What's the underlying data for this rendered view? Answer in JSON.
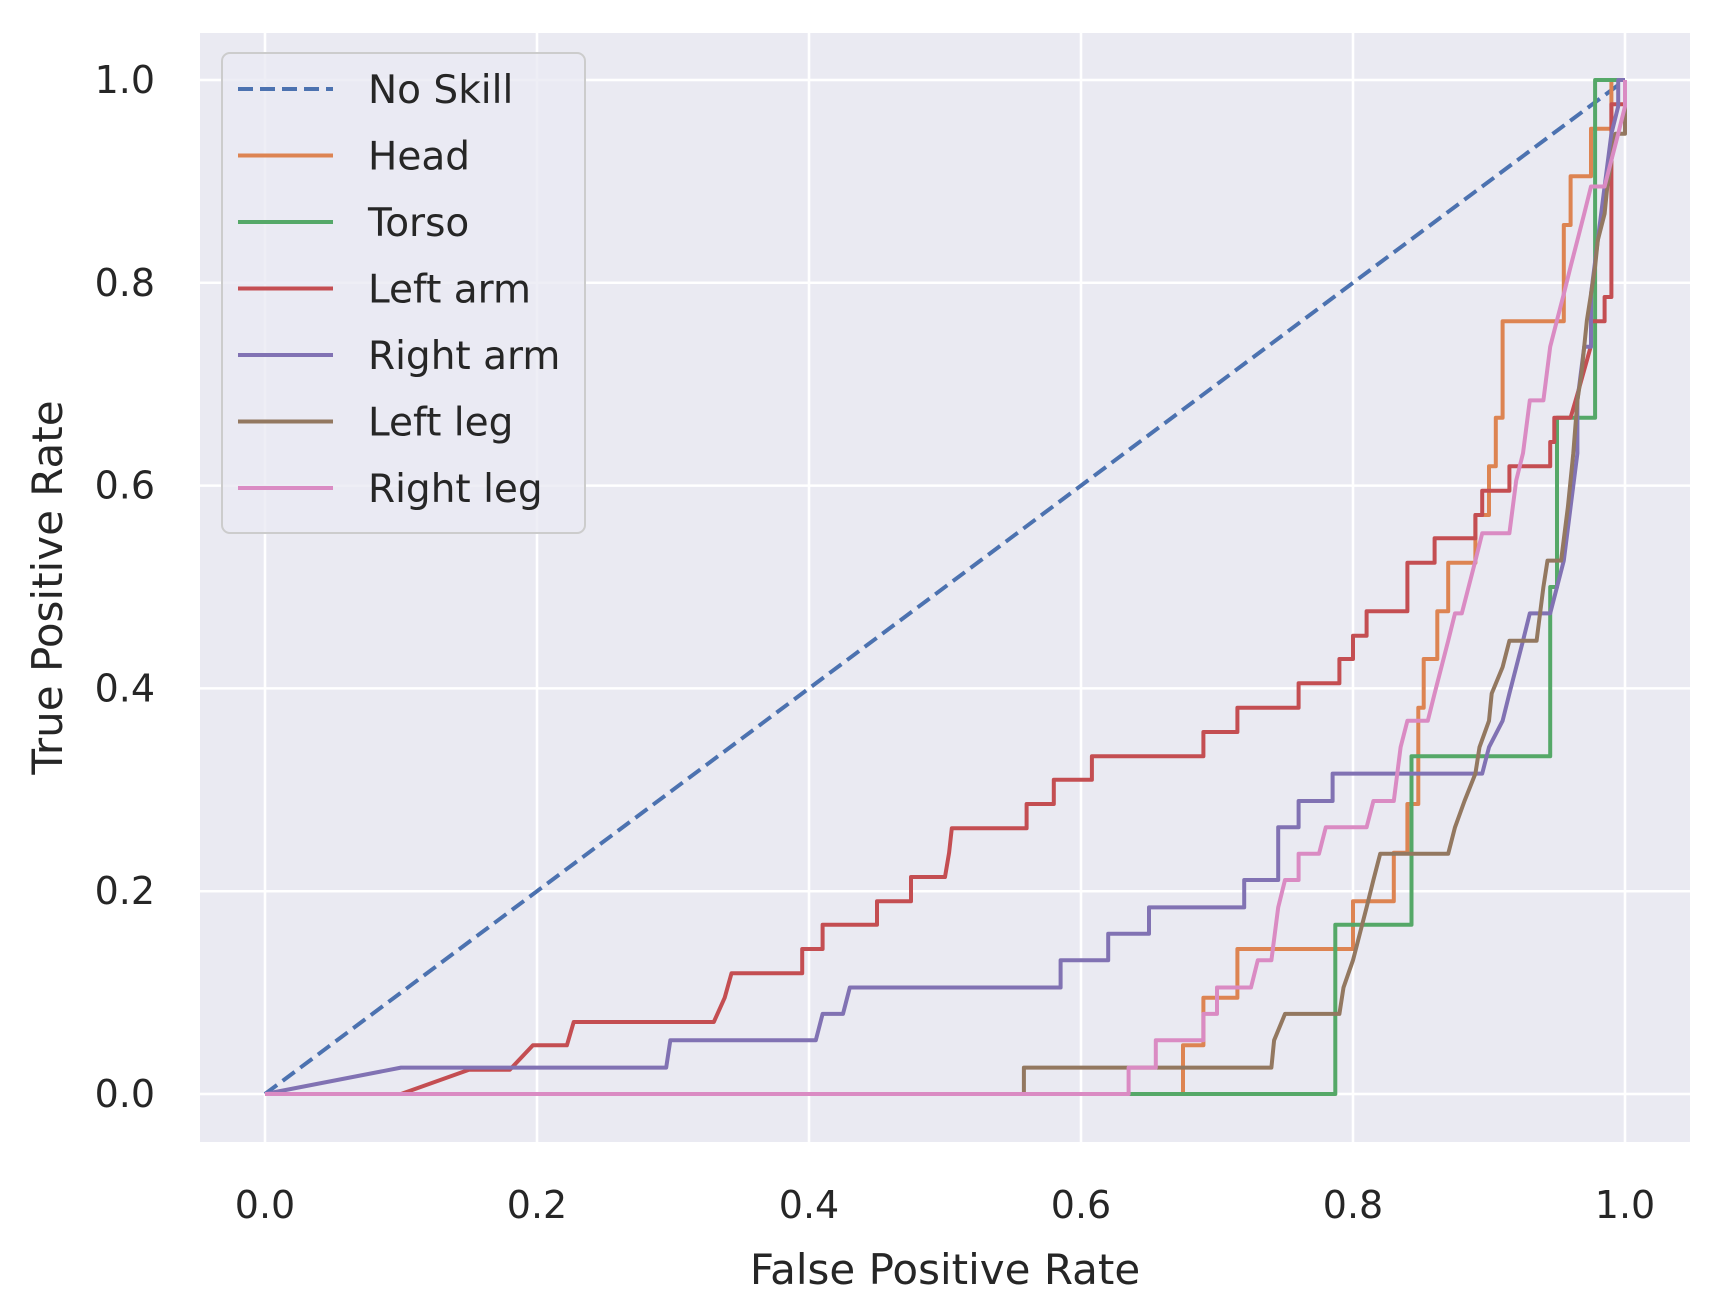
{
  "chart_data": {
    "type": "line",
    "title": "",
    "xlabel": "False Positive Rate",
    "ylabel": "True Positive Rate",
    "xlim": [
      -0.05,
      1.05
    ],
    "ylim": [
      -0.05,
      1.05
    ],
    "xticks": [
      0.0,
      0.2,
      0.4,
      0.6,
      0.8,
      1.0
    ],
    "yticks": [
      0.0,
      0.2,
      0.4,
      0.6,
      0.8,
      1.0
    ],
    "tick_labels": [
      "0.0",
      "0.2",
      "0.4",
      "0.6",
      "0.8",
      "1.0"
    ],
    "grid": true,
    "background": "#eaeaf2",
    "legend_position": "top-left",
    "series": [
      {
        "name": "No Skill",
        "color": "#4c72b0",
        "dashed": true,
        "points": [
          [
            0,
            0
          ],
          [
            1,
            1
          ]
        ]
      },
      {
        "name": "Head",
        "color": "#dd8452",
        "points": [
          [
            0,
            0
          ],
          [
            0.675,
            0
          ],
          [
            0.675,
            0.048
          ],
          [
            0.69,
            0.048
          ],
          [
            0.69,
            0.095
          ],
          [
            0.705,
            0.095
          ],
          [
            0.715,
            0.095
          ],
          [
            0.715,
            0.143
          ],
          [
            0.8,
            0.143
          ],
          [
            0.8,
            0.19
          ],
          [
            0.83,
            0.19
          ],
          [
            0.83,
            0.238
          ],
          [
            0.84,
            0.238
          ],
          [
            0.84,
            0.286
          ],
          [
            0.848,
            0.286
          ],
          [
            0.848,
            0.381
          ],
          [
            0.852,
            0.381
          ],
          [
            0.852,
            0.429
          ],
          [
            0.862,
            0.429
          ],
          [
            0.862,
            0.476
          ],
          [
            0.87,
            0.476
          ],
          [
            0.87,
            0.524
          ],
          [
            0.89,
            0.524
          ],
          [
            0.89,
            0.571
          ],
          [
            0.9,
            0.571
          ],
          [
            0.9,
            0.619
          ],
          [
            0.905,
            0.619
          ],
          [
            0.905,
            0.667
          ],
          [
            0.91,
            0.667
          ],
          [
            0.91,
            0.762
          ],
          [
            0.955,
            0.762
          ],
          [
            0.955,
            0.857
          ],
          [
            0.96,
            0.857
          ],
          [
            0.96,
            0.905
          ],
          [
            0.975,
            0.905
          ],
          [
            0.975,
            0.952
          ],
          [
            0.99,
            0.952
          ],
          [
            0.99,
            1.0
          ],
          [
            1.0,
            1.0
          ]
        ]
      },
      {
        "name": "Torso",
        "color": "#55a868",
        "points": [
          [
            0,
            0
          ],
          [
            0.635,
            0
          ],
          [
            0.787,
            0
          ],
          [
            0.787,
            0.167
          ],
          [
            0.843,
            0.167
          ],
          [
            0.843,
            0.333
          ],
          [
            0.945,
            0.333
          ],
          [
            0.945,
            0.5
          ],
          [
            0.95,
            0.5
          ],
          [
            0.95,
            0.667
          ],
          [
            0.978,
            0.667
          ],
          [
            0.978,
            1.0
          ],
          [
            1.0,
            1.0
          ]
        ]
      },
      {
        "name": "Left arm",
        "color": "#c44e52",
        "points": [
          [
            0,
            0
          ],
          [
            0.1,
            0
          ],
          [
            0.15,
            0.024
          ],
          [
            0.18,
            0.024
          ],
          [
            0.197,
            0.048
          ],
          [
            0.222,
            0.048
          ],
          [
            0.227,
            0.071
          ],
          [
            0.33,
            0.071
          ],
          [
            0.338,
            0.095
          ],
          [
            0.343,
            0.119
          ],
          [
            0.395,
            0.119
          ],
          [
            0.395,
            0.143
          ],
          [
            0.41,
            0.143
          ],
          [
            0.41,
            0.167
          ],
          [
            0.45,
            0.167
          ],
          [
            0.45,
            0.19
          ],
          [
            0.475,
            0.19
          ],
          [
            0.475,
            0.214
          ],
          [
            0.5,
            0.214
          ],
          [
            0.503,
            0.238
          ],
          [
            0.505,
            0.262
          ],
          [
            0.56,
            0.262
          ],
          [
            0.56,
            0.286
          ],
          [
            0.58,
            0.286
          ],
          [
            0.58,
            0.31
          ],
          [
            0.608,
            0.31
          ],
          [
            0.608,
            0.333
          ],
          [
            0.69,
            0.333
          ],
          [
            0.69,
            0.357
          ],
          [
            0.715,
            0.357
          ],
          [
            0.715,
            0.381
          ],
          [
            0.76,
            0.381
          ],
          [
            0.76,
            0.405
          ],
          [
            0.79,
            0.405
          ],
          [
            0.79,
            0.429
          ],
          [
            0.8,
            0.429
          ],
          [
            0.8,
            0.452
          ],
          [
            0.81,
            0.452
          ],
          [
            0.81,
            0.476
          ],
          [
            0.84,
            0.476
          ],
          [
            0.84,
            0.524
          ],
          [
            0.86,
            0.524
          ],
          [
            0.86,
            0.548
          ],
          [
            0.89,
            0.548
          ],
          [
            0.89,
            0.571
          ],
          [
            0.895,
            0.571
          ],
          [
            0.895,
            0.595
          ],
          [
            0.915,
            0.595
          ],
          [
            0.915,
            0.619
          ],
          [
            0.945,
            0.619
          ],
          [
            0.945,
            0.643
          ],
          [
            0.948,
            0.643
          ],
          [
            0.948,
            0.667
          ],
          [
            0.96,
            0.667
          ],
          [
            0.965,
            0.69
          ],
          [
            0.97,
            0.714
          ],
          [
            0.975,
            0.738
          ],
          [
            0.975,
            0.762
          ],
          [
            0.985,
            0.762
          ],
          [
            0.985,
            0.786
          ],
          [
            0.99,
            0.786
          ],
          [
            0.99,
            0.976
          ],
          [
            1.0,
            0.976
          ],
          [
            1.0,
            1.0
          ]
        ]
      },
      {
        "name": "Right arm",
        "color": "#8172b3",
        "points": [
          [
            0,
            0
          ],
          [
            0.1,
            0.026
          ],
          [
            0.295,
            0.026
          ],
          [
            0.298,
            0.053
          ],
          [
            0.405,
            0.053
          ],
          [
            0.41,
            0.079
          ],
          [
            0.425,
            0.079
          ],
          [
            0.43,
            0.105
          ],
          [
            0.585,
            0.105
          ],
          [
            0.585,
            0.132
          ],
          [
            0.62,
            0.132
          ],
          [
            0.62,
            0.158
          ],
          [
            0.65,
            0.158
          ],
          [
            0.65,
            0.184
          ],
          [
            0.72,
            0.184
          ],
          [
            0.72,
            0.211
          ],
          [
            0.745,
            0.211
          ],
          [
            0.745,
            0.263
          ],
          [
            0.76,
            0.263
          ],
          [
            0.76,
            0.289
          ],
          [
            0.785,
            0.289
          ],
          [
            0.785,
            0.316
          ],
          [
            0.895,
            0.316
          ],
          [
            0.9,
            0.342
          ],
          [
            0.91,
            0.368
          ],
          [
            0.915,
            0.395
          ],
          [
            0.92,
            0.421
          ],
          [
            0.925,
            0.447
          ],
          [
            0.93,
            0.474
          ],
          [
            0.945,
            0.474
          ],
          [
            0.95,
            0.5
          ],
          [
            0.955,
            0.526
          ],
          [
            0.96,
            0.579
          ],
          [
            0.965,
            0.632
          ],
          [
            0.965,
            0.684
          ],
          [
            0.97,
            0.737
          ],
          [
            0.975,
            0.737
          ],
          [
            0.975,
            0.789
          ],
          [
            0.98,
            0.842
          ],
          [
            0.985,
            0.895
          ],
          [
            0.99,
            0.947
          ],
          [
            0.995,
            0.974
          ],
          [
            0.995,
            1.0
          ],
          [
            1.0,
            1.0
          ]
        ]
      },
      {
        "name": "Left leg",
        "color": "#937860",
        "points": [
          [
            0,
            0
          ],
          [
            0.558,
            0
          ],
          [
            0.558,
            0.026
          ],
          [
            0.74,
            0.026
          ],
          [
            0.742,
            0.053
          ],
          [
            0.75,
            0.079
          ],
          [
            0.79,
            0.079
          ],
          [
            0.793,
            0.105
          ],
          [
            0.8,
            0.132
          ],
          [
            0.805,
            0.158
          ],
          [
            0.81,
            0.184
          ],
          [
            0.815,
            0.211
          ],
          [
            0.82,
            0.237
          ],
          [
            0.87,
            0.237
          ],
          [
            0.875,
            0.263
          ],
          [
            0.882,
            0.289
          ],
          [
            0.89,
            0.316
          ],
          [
            0.893,
            0.342
          ],
          [
            0.9,
            0.368
          ],
          [
            0.902,
            0.395
          ],
          [
            0.91,
            0.421
          ],
          [
            0.915,
            0.447
          ],
          [
            0.935,
            0.447
          ],
          [
            0.94,
            0.5
          ],
          [
            0.943,
            0.526
          ],
          [
            0.953,
            0.526
          ],
          [
            0.958,
            0.579
          ],
          [
            0.962,
            0.632
          ],
          [
            0.965,
            0.684
          ],
          [
            0.968,
            0.711
          ],
          [
            0.97,
            0.737
          ],
          [
            0.972,
            0.763
          ],
          [
            0.975,
            0.789
          ],
          [
            0.978,
            0.816
          ],
          [
            0.98,
            0.842
          ],
          [
            0.985,
            0.868
          ],
          [
            0.987,
            0.895
          ],
          [
            0.99,
            0.921
          ],
          [
            0.993,
            0.947
          ],
          [
            1.0,
            0.947
          ],
          [
            1.0,
            1.0
          ]
        ]
      },
      {
        "name": "Right leg",
        "color": "#da8bc3",
        "points": [
          [
            0,
            0
          ],
          [
            0.635,
            0
          ],
          [
            0.635,
            0.026
          ],
          [
            0.655,
            0.026
          ],
          [
            0.655,
            0.053
          ],
          [
            0.69,
            0.053
          ],
          [
            0.69,
            0.079
          ],
          [
            0.7,
            0.079
          ],
          [
            0.7,
            0.105
          ],
          [
            0.725,
            0.105
          ],
          [
            0.73,
            0.132
          ],
          [
            0.74,
            0.132
          ],
          [
            0.745,
            0.184
          ],
          [
            0.75,
            0.211
          ],
          [
            0.76,
            0.211
          ],
          [
            0.76,
            0.237
          ],
          [
            0.775,
            0.237
          ],
          [
            0.78,
            0.263
          ],
          [
            0.81,
            0.263
          ],
          [
            0.815,
            0.289
          ],
          [
            0.83,
            0.289
          ],
          [
            0.835,
            0.342
          ],
          [
            0.84,
            0.368
          ],
          [
            0.855,
            0.368
          ],
          [
            0.86,
            0.395
          ],
          [
            0.865,
            0.421
          ],
          [
            0.87,
            0.447
          ],
          [
            0.875,
            0.474
          ],
          [
            0.88,
            0.474
          ],
          [
            0.885,
            0.5
          ],
          [
            0.89,
            0.526
          ],
          [
            0.895,
            0.553
          ],
          [
            0.915,
            0.553
          ],
          [
            0.92,
            0.605
          ],
          [
            0.925,
            0.632
          ],
          [
            0.93,
            0.684
          ],
          [
            0.94,
            0.684
          ],
          [
            0.945,
            0.737
          ],
          [
            0.95,
            0.763
          ],
          [
            0.955,
            0.789
          ],
          [
            0.96,
            0.816
          ],
          [
            0.965,
            0.842
          ],
          [
            0.97,
            0.868
          ],
          [
            0.975,
            0.895
          ],
          [
            0.985,
            0.895
          ],
          [
            0.99,
            0.921
          ],
          [
            0.995,
            0.947
          ],
          [
            1.0,
            0.974
          ],
          [
            1.0,
            1.0
          ]
        ]
      }
    ]
  }
}
